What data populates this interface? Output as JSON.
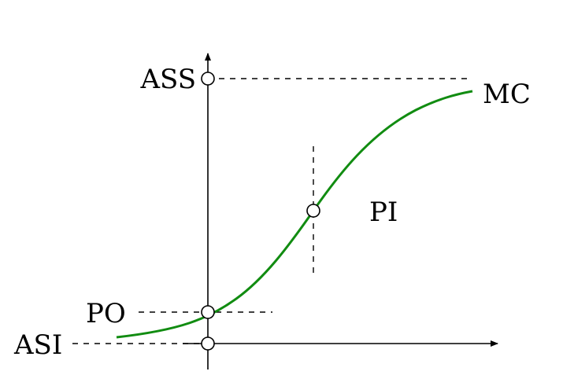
{
  "labels": {
    "ass": "ASS",
    "mc": "MC",
    "pi": "PI",
    "po": "PO",
    "asi": "ASI"
  },
  "colors": {
    "curve": "#118c11",
    "ink": "#000000",
    "background": "#ffffff"
  }
}
